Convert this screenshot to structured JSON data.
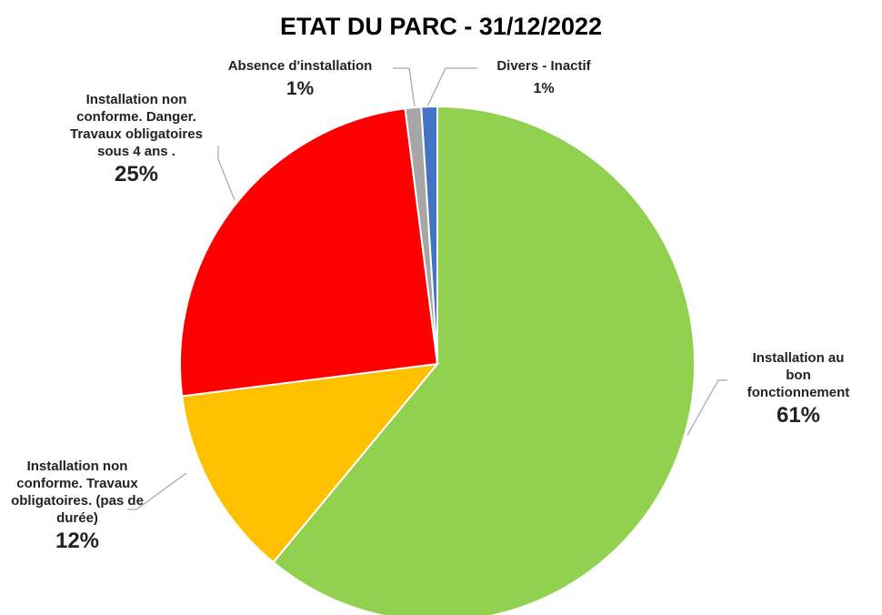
{
  "chart_data": {
    "type": "pie",
    "title": "ETAT DU PARC - 31/12/2022",
    "categories": [
      "Installation au bon\nfonctionnement",
      "Installation non\nconforme. Travaux\nobligatoires. (pas de\ndurée)",
      "Installation non\nconforme. Danger.\nTravaux obligatoires\nsous 4 ans .",
      "Absence d'installation",
      "Divers - Inactif"
    ],
    "values": [
      61,
      12,
      25,
      1,
      1
    ],
    "value_labels": [
      "61%",
      "12%",
      "25%",
      "1%",
      "1%"
    ],
    "colors": [
      "#92d050",
      "#ffc000",
      "#ff0000",
      "#a6a6a6",
      "#4472c4"
    ]
  }
}
